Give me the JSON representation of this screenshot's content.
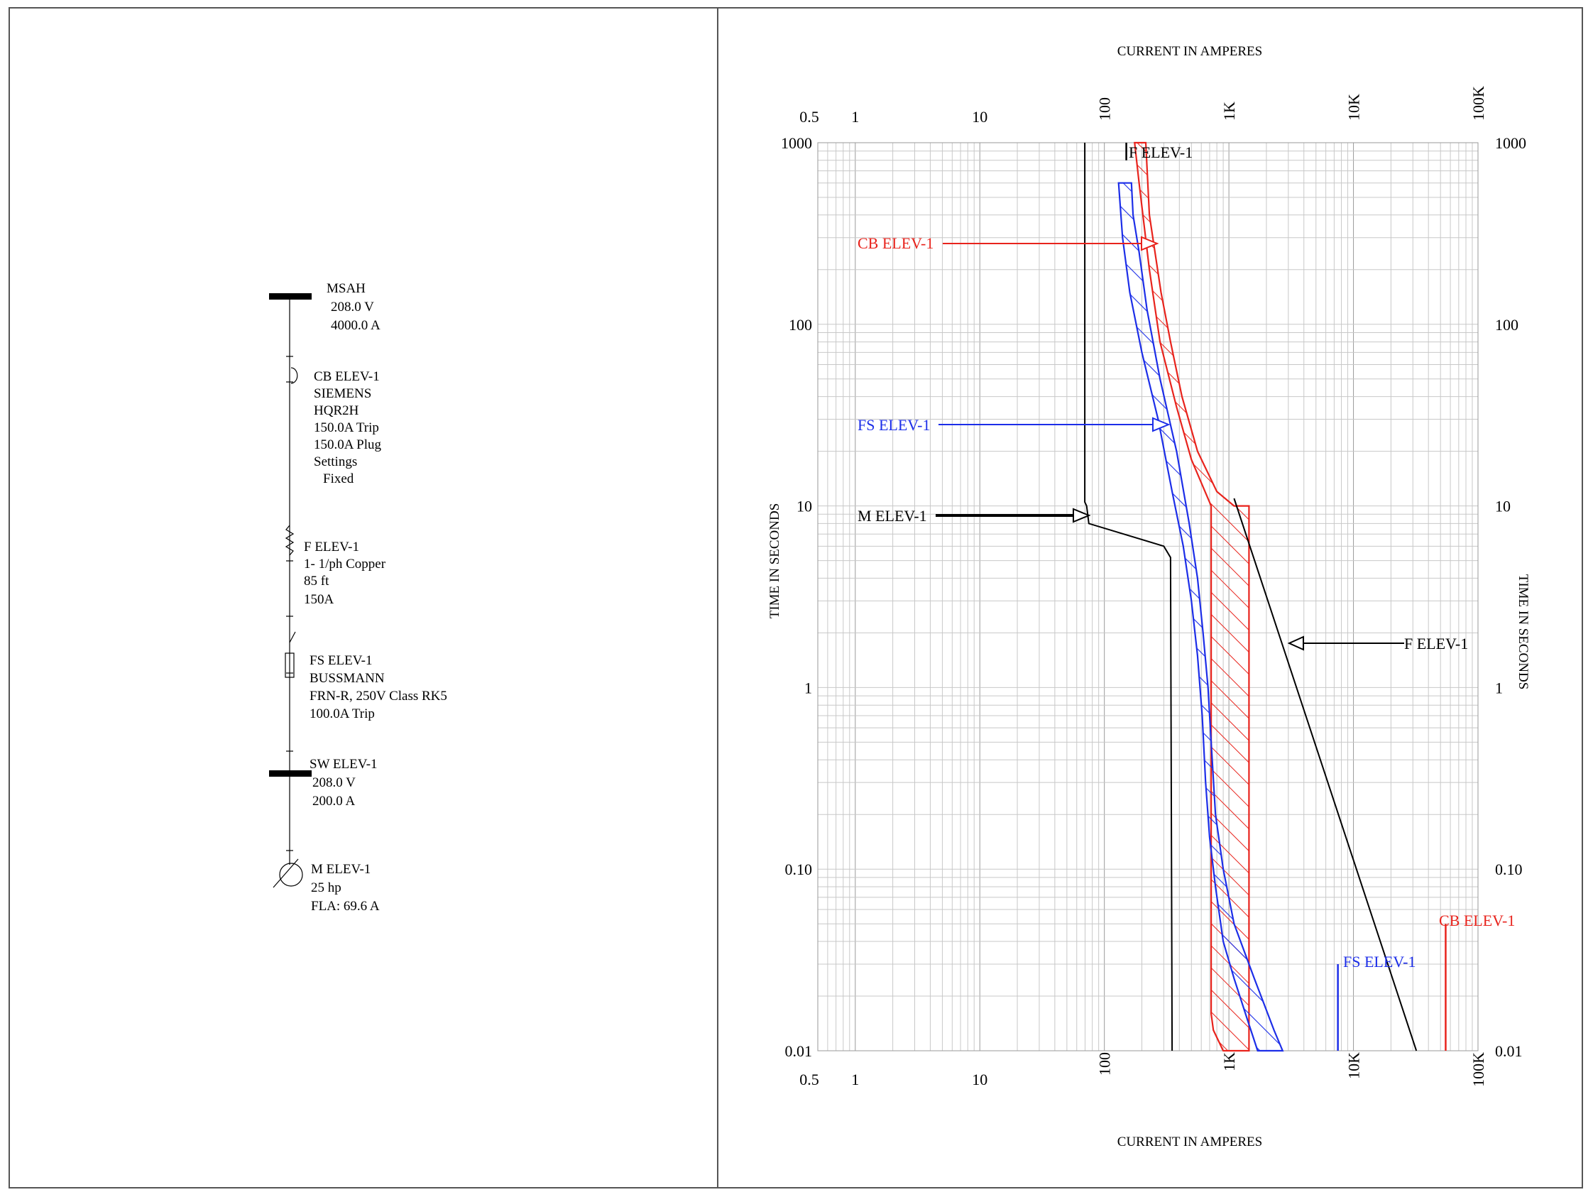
{
  "one_line": {
    "bus_main": {
      "name": "MSAH",
      "voltage": "208.0 V",
      "rating": "4000.0 A"
    },
    "breaker": {
      "lines": [
        "CB ELEV-1",
        "SIEMENS",
        "HQR2H",
        "150.0A Trip",
        "150.0A Plug",
        "Settings",
        "Fixed"
      ]
    },
    "feeder": {
      "lines": [
        "F ELEV-1",
        "1- 1/ph Copper",
        "85 ft",
        "150A"
      ]
    },
    "fused_switch": {
      "lines": [
        "FS ELEV-1",
        "BUSSMANN",
        "FRN-R, 250V Class RK5",
        "100.0A Trip"
      ]
    },
    "bus_sw": {
      "name": "SW ELEV-1",
      "voltage": "208.0 V",
      "rating": "200.0 A"
    },
    "motor": {
      "lines": [
        "M ELEV-1",
        "25 hp",
        "FLA: 69.6 A"
      ]
    }
  },
  "chart_data": {
    "type": "line",
    "title": "",
    "xlabel": "CURRENT IN AMPERES",
    "ylabel": "TIME IN SECONDS",
    "x_scale": "log",
    "y_scale": "log",
    "xlim": [
      0.5,
      100000
    ],
    "ylim": [
      0.01,
      1000
    ],
    "x_tick_labels": [
      "0.5",
      "1",
      "10",
      "100",
      "1K",
      "10K",
      "100K"
    ],
    "y_tick_labels": [
      "0.01",
      "0.10",
      "1",
      "10",
      "100",
      "1000"
    ],
    "grid": true,
    "series": [
      {
        "name": "CB ELEV-1",
        "color": "#e8231c",
        "kind": "band",
        "upper": [
          [
            215,
            1000
          ],
          [
            230,
            400
          ],
          [
            285,
            150
          ],
          [
            340,
            80
          ],
          [
            420,
            40
          ],
          [
            560,
            20
          ],
          [
            800,
            12
          ],
          [
            1100,
            10
          ],
          [
            1450,
            10
          ],
          [
            1450,
            0.01
          ]
        ],
        "lower": [
          [
            175,
            1000
          ],
          [
            190,
            600
          ],
          [
            230,
            200
          ],
          [
            280,
            80
          ],
          [
            380,
            35
          ],
          [
            500,
            18
          ],
          [
            720,
            10
          ],
          [
            720,
            0.016
          ],
          [
            750,
            0.013
          ],
          [
            900,
            0.01
          ]
        ],
        "instantaneous_tick": {
          "current": 55000,
          "time_top": 0.05
        }
      },
      {
        "name": "FS ELEV-1",
        "color": "#1c2ee8",
        "kind": "band",
        "upper": [
          [
            165,
            600
          ],
          [
            170,
            400
          ],
          [
            190,
            250
          ],
          [
            220,
            120
          ],
          [
            280,
            50
          ],
          [
            380,
            20
          ],
          [
            480,
            8
          ],
          [
            560,
            4
          ],
          [
            620,
            2
          ],
          [
            680,
            1
          ],
          [
            720,
            0.5
          ],
          [
            780,
            0.2
          ],
          [
            900,
            0.1
          ],
          [
            1100,
            0.05
          ],
          [
            1600,
            0.025
          ],
          [
            2300,
            0.013
          ],
          [
            2700,
            0.01
          ]
        ],
        "lower": [
          [
            130,
            600
          ],
          [
            140,
            300
          ],
          [
            160,
            150
          ],
          [
            200,
            70
          ],
          [
            270,
            30
          ],
          [
            350,
            12
          ],
          [
            430,
            6
          ],
          [
            500,
            3
          ],
          [
            560,
            1.5
          ],
          [
            610,
            0.7
          ],
          [
            650,
            0.3
          ],
          [
            700,
            0.15
          ],
          [
            780,
            0.08
          ],
          [
            900,
            0.04
          ],
          [
            1100,
            0.025
          ],
          [
            1400,
            0.015
          ],
          [
            1700,
            0.01
          ]
        ],
        "instantaneous_tick": {
          "current": 7500,
          "time_top": 0.03
        }
      },
      {
        "name": "M ELEV-1",
        "color": "#000000",
        "kind": "line",
        "points": [
          [
            69.6,
            1000
          ],
          [
            69.6,
            10.5
          ],
          [
            72,
            10
          ],
          [
            75,
            8
          ],
          [
            300,
            6
          ],
          [
            340,
            5.2
          ],
          [
            350,
            0.01
          ]
        ]
      },
      {
        "name": "F ELEV-1",
        "color": "#000000",
        "kind": "line",
        "points": [
          [
            1100,
            11
          ],
          [
            32000,
            0.01
          ]
        ],
        "top_tick": {
          "current": 150,
          "time_bottom": 800
        }
      }
    ],
    "annotations": [
      {
        "text": "F ELEV-1",
        "color": "#000000"
      },
      {
        "text": "CB ELEV-1",
        "color": "#e8231c"
      },
      {
        "text": "FS ELEV-1",
        "color": "#1c2ee8"
      },
      {
        "text": "M ELEV-1",
        "color": "#000000"
      },
      {
        "text": "F ELEV-1",
        "color": "#000000"
      },
      {
        "text": "CB ELEV-1",
        "color": "#e8231c"
      },
      {
        "text": "FS ELEV-1",
        "color": "#1c2ee8"
      }
    ]
  }
}
